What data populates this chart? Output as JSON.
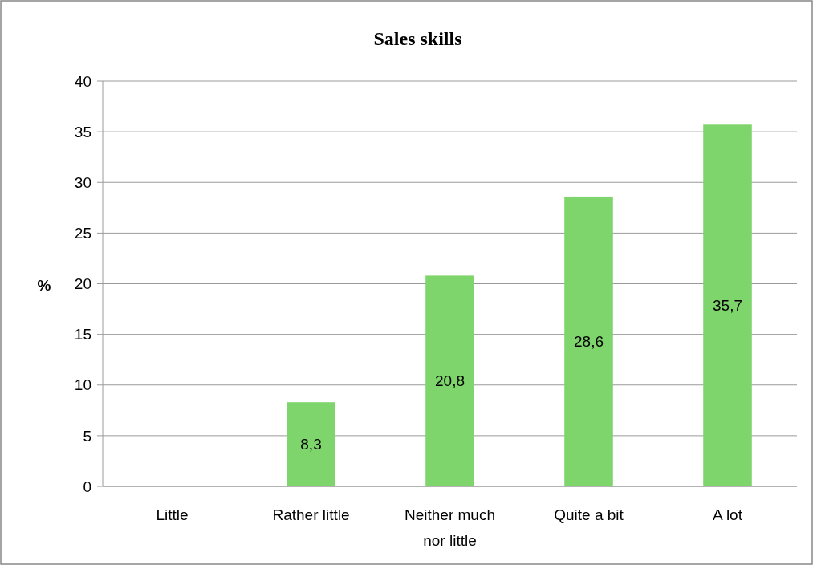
{
  "chart_data": {
    "type": "bar",
    "title": "Sales skills",
    "ylabel": "%",
    "categories": [
      "Little",
      "Rather little",
      "Neither much nor little",
      "Quite a bit",
      "A lot"
    ],
    "values": [
      0,
      8.3,
      20.8,
      28.6,
      35.7
    ],
    "value_labels": [
      null,
      "8,3",
      "20,8",
      "28,6",
      "35,7"
    ],
    "color": "#7dd56b",
    "ylim": [
      0,
      40
    ],
    "yticks": [
      0,
      5,
      10,
      15,
      20,
      25,
      30,
      35,
      40
    ],
    "grid": "y"
  }
}
